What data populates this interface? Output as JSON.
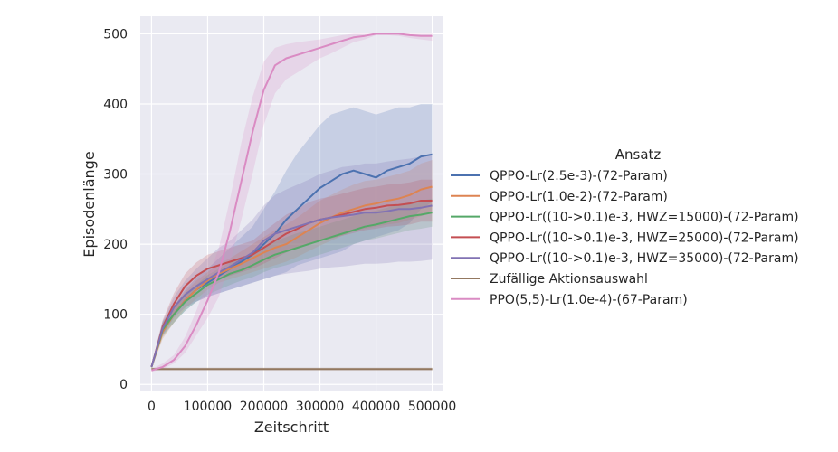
{
  "chart_data": {
    "type": "line",
    "title": "",
    "xlabel": "Zeitschritt",
    "ylabel": "Episodenlänge",
    "xlim": [
      -20000,
      520000
    ],
    "ylim": [
      -10,
      525
    ],
    "xticks": [
      0,
      100000,
      200000,
      300000,
      400000,
      500000
    ],
    "xtick_labels": [
      "0",
      "100000",
      "200000",
      "300000",
      "400000",
      "500000"
    ],
    "yticks": [
      0,
      100,
      200,
      300,
      400,
      500
    ],
    "ytick_labels": [
      "0",
      "100",
      "200",
      "300",
      "400",
      "500"
    ],
    "grid": true,
    "legend": {
      "title": "Ansatz",
      "placement": "outside-right"
    },
    "x": [
      0,
      20000,
      40000,
      60000,
      80000,
      100000,
      120000,
      140000,
      160000,
      180000,
      200000,
      220000,
      240000,
      260000,
      280000,
      300000,
      320000,
      340000,
      360000,
      380000,
      400000,
      420000,
      440000,
      460000,
      480000,
      500000
    ],
    "series": [
      {
        "name": "QPPO-Lr(2.5e-3)-(72-Param)",
        "color": "#4c72b0",
        "values": [
          25,
          80,
          100,
          120,
          135,
          145,
          155,
          165,
          175,
          185,
          200,
          215,
          235,
          250,
          265,
          280,
          290,
          300,
          305,
          300,
          295,
          305,
          310,
          315,
          325,
          328
        ],
        "band": [
          [
            22,
            28
          ],
          [
            70,
            90
          ],
          [
            88,
            112
          ],
          [
            105,
            135
          ],
          [
            118,
            152
          ],
          [
            125,
            165
          ],
          [
            130,
            180
          ],
          [
            135,
            195
          ],
          [
            140,
            210
          ],
          [
            145,
            225
          ],
          [
            150,
            250
          ],
          [
            155,
            275
          ],
          [
            160,
            305
          ],
          [
            170,
            330
          ],
          [
            175,
            350
          ],
          [
            180,
            370
          ],
          [
            185,
            385
          ],
          [
            190,
            390
          ],
          [
            200,
            395
          ],
          [
            205,
            390
          ],
          [
            210,
            385
          ],
          [
            215,
            390
          ],
          [
            220,
            395
          ],
          [
            230,
            395
          ],
          [
            250,
            400
          ],
          [
            260,
            400
          ]
        ]
      },
      {
        "name": "QPPO-Lr(1.0e-2)-(72-Param)",
        "color": "#dd8452",
        "values": [
          25,
          75,
          100,
          120,
          135,
          148,
          158,
          165,
          172,
          180,
          188,
          195,
          200,
          210,
          220,
          230,
          238,
          245,
          250,
          255,
          258,
          262,
          265,
          270,
          278,
          282
        ],
        "band": [
          [
            22,
            28
          ],
          [
            65,
            85
          ],
          [
            88,
            112
          ],
          [
            108,
            132
          ],
          [
            122,
            148
          ],
          [
            135,
            160
          ],
          [
            145,
            172
          ],
          [
            150,
            180
          ],
          [
            155,
            190
          ],
          [
            160,
            200
          ],
          [
            165,
            210
          ],
          [
            170,
            220
          ],
          [
            175,
            228
          ],
          [
            182,
            238
          ],
          [
            190,
            250
          ],
          [
            198,
            262
          ],
          [
            205,
            270
          ],
          [
            212,
            278
          ],
          [
            218,
            285
          ],
          [
            222,
            290
          ],
          [
            225,
            292
          ],
          [
            228,
            296
          ],
          [
            230,
            300
          ],
          [
            235,
            305
          ],
          [
            240,
            315
          ],
          [
            245,
            320
          ]
        ]
      },
      {
        "name": "QPPO-Lr((10->0.1)e-3, HWZ=15000)-(72-Param)",
        "color": "#55a868",
        "values": [
          25,
          78,
          100,
          118,
          130,
          142,
          150,
          158,
          163,
          170,
          178,
          185,
          190,
          195,
          200,
          205,
          210,
          215,
          220,
          225,
          228,
          232,
          236,
          240,
          242,
          245
        ],
        "band": [
          [
            22,
            28
          ],
          [
            68,
            88
          ],
          [
            88,
            112
          ],
          [
            105,
            130
          ],
          [
            118,
            142
          ],
          [
            128,
            156
          ],
          [
            135,
            165
          ],
          [
            142,
            174
          ],
          [
            148,
            180
          ],
          [
            153,
            188
          ],
          [
            160,
            196
          ],
          [
            166,
            204
          ],
          [
            170,
            210
          ],
          [
            175,
            216
          ],
          [
            180,
            220
          ],
          [
            185,
            225
          ],
          [
            190,
            230
          ],
          [
            195,
            235
          ],
          [
            200,
            240
          ],
          [
            205,
            245
          ],
          [
            208,
            248
          ],
          [
            212,
            252
          ],
          [
            216,
            256
          ],
          [
            220,
            260
          ],
          [
            222,
            262
          ],
          [
            225,
            265
          ]
        ]
      },
      {
        "name": "QPPO-Lr((10->0.1)e-3, HWZ=25000)-(72-Param)",
        "color": "#c44e52",
        "values": [
          25,
          82,
          115,
          140,
          155,
          165,
          170,
          175,
          180,
          185,
          195,
          205,
          215,
          222,
          230,
          235,
          238,
          242,
          246,
          250,
          252,
          255,
          256,
          258,
          262,
          262
        ],
        "band": [
          [
            22,
            28
          ],
          [
            72,
            92
          ],
          [
            100,
            130
          ],
          [
            122,
            158
          ],
          [
            136,
            174
          ],
          [
            145,
            185
          ],
          [
            150,
            190
          ],
          [
            155,
            195
          ],
          [
            160,
            200
          ],
          [
            165,
            205
          ],
          [
            172,
            218
          ],
          [
            180,
            230
          ],
          [
            188,
            242
          ],
          [
            195,
            250
          ],
          [
            200,
            260
          ],
          [
            205,
            265
          ],
          [
            208,
            268
          ],
          [
            212,
            272
          ],
          [
            216,
            276
          ],
          [
            220,
            280
          ],
          [
            222,
            282
          ],
          [
            225,
            285
          ],
          [
            226,
            286
          ],
          [
            228,
            288
          ],
          [
            232,
            292
          ],
          [
            232,
            292
          ]
        ]
      },
      {
        "name": "QPPO-Lr((10->0.1)e-3, HWZ=35000)-(72-Param)",
        "color": "#8172b3",
        "values": [
          25,
          80,
          110,
          128,
          140,
          150,
          160,
          168,
          178,
          188,
          205,
          215,
          220,
          225,
          230,
          235,
          238,
          240,
          242,
          245,
          245,
          247,
          250,
          250,
          252,
          255
        ],
        "band": [
          [
            22,
            28
          ],
          [
            70,
            90
          ],
          [
            95,
            125
          ],
          [
            110,
            148
          ],
          [
            118,
            165
          ],
          [
            125,
            180
          ],
          [
            130,
            195
          ],
          [
            135,
            205
          ],
          [
            140,
            220
          ],
          [
            145,
            235
          ],
          [
            150,
            255
          ],
          [
            155,
            270
          ],
          [
            158,
            278
          ],
          [
            160,
            285
          ],
          [
            162,
            292
          ],
          [
            165,
            300
          ],
          [
            167,
            305
          ],
          [
            168,
            310
          ],
          [
            170,
            312
          ],
          [
            172,
            315
          ],
          [
            172,
            315
          ],
          [
            173,
            318
          ],
          [
            175,
            320
          ],
          [
            175,
            322
          ],
          [
            176,
            325
          ],
          [
            178,
            330
          ]
        ]
      },
      {
        "name": "Zufällige Aktionsauswahl",
        "color": "#937860",
        "values": [
          22,
          22,
          22,
          22,
          22,
          22,
          22,
          22,
          22,
          22,
          22,
          22,
          22,
          22,
          22,
          22,
          22,
          22,
          22,
          22,
          22,
          22,
          22,
          22,
          22,
          22
        ],
        "band": [
          [
            20,
            24
          ],
          [
            20,
            24
          ],
          [
            20,
            24
          ],
          [
            20,
            24
          ],
          [
            20,
            24
          ],
          [
            20,
            24
          ],
          [
            20,
            24
          ],
          [
            20,
            24
          ],
          [
            20,
            24
          ],
          [
            20,
            24
          ],
          [
            20,
            24
          ],
          [
            20,
            24
          ],
          [
            20,
            24
          ],
          [
            20,
            24
          ],
          [
            20,
            24
          ],
          [
            20,
            24
          ],
          [
            20,
            24
          ],
          [
            20,
            24
          ],
          [
            20,
            24
          ],
          [
            20,
            24
          ],
          [
            20,
            24
          ],
          [
            20,
            24
          ],
          [
            20,
            24
          ],
          [
            20,
            24
          ],
          [
            20,
            24
          ],
          [
            20,
            24
          ]
        ]
      },
      {
        "name": "PPO(5,5)-Lr(1.0e-4)-(67-Param)",
        "color": "#da8bc3",
        "values": [
          20,
          25,
          35,
          55,
          85,
          120,
          160,
          220,
          290,
          360,
          420,
          455,
          465,
          470,
          475,
          480,
          485,
          490,
          495,
          497,
          500,
          500,
          500,
          498,
          497,
          497
        ],
        "band": [
          [
            18,
            22
          ],
          [
            22,
            30
          ],
          [
            30,
            42
          ],
          [
            45,
            68
          ],
          [
            70,
            105
          ],
          [
            95,
            150
          ],
          [
            125,
            195
          ],
          [
            175,
            265
          ],
          [
            235,
            345
          ],
          [
            300,
            410
          ],
          [
            370,
            460
          ],
          [
            415,
            480
          ],
          [
            435,
            485
          ],
          [
            445,
            488
          ],
          [
            455,
            490
          ],
          [
            465,
            492
          ],
          [
            472,
            495
          ],
          [
            480,
            498
          ],
          [
            488,
            500
          ],
          [
            492,
            500
          ],
          [
            498,
            500
          ],
          [
            498,
            500
          ],
          [
            497,
            500
          ],
          [
            494,
            500
          ],
          [
            492,
            500
          ],
          [
            490,
            500
          ]
        ]
      }
    ]
  }
}
